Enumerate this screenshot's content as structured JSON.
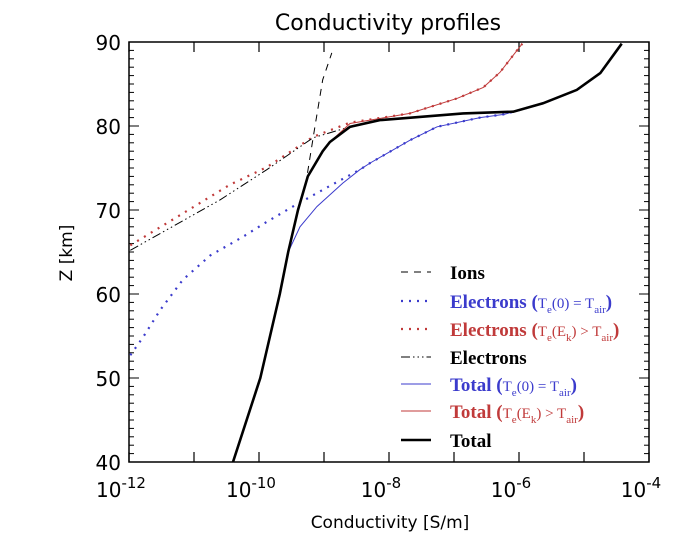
{
  "chart_data": {
    "type": "line",
    "title": "Conductivity profiles",
    "xlabel": "Conductivity [S/m]",
    "ylabel": "Z [km]",
    "xscale": "log",
    "xlim": [
      1e-12,
      0.0001
    ],
    "ylim": [
      40,
      90
    ],
    "x_tick_labels": [
      {
        "base": "10",
        "exp": "-12",
        "value": -12
      },
      {
        "base": "10",
        "exp": "-10",
        "value": -10
      },
      {
        "base": "10",
        "exp": "-8",
        "value": -8
      },
      {
        "base": "10",
        "exp": "-6",
        "value": -6
      },
      {
        "base": "10",
        "exp": "-4",
        "value": -4
      }
    ],
    "y_ticks": [
      40,
      50,
      60,
      70,
      80,
      90
    ],
    "grid": false,
    "legend_position": "bottom-right",
    "series": [
      {
        "name": "Ions",
        "color": "#000000",
        "style": "dashed",
        "log10_x": [
          -10.4,
          -9.98,
          -9.68,
          -9.55,
          -9.4,
          -9.29,
          -9.14,
          -9.02,
          -8.88
        ],
        "z": [
          40,
          50,
          60,
          65,
          70,
          72.7,
          79.9,
          85.5,
          88.7
        ]
      },
      {
        "name": "Electrons (Te(0) = Tair)",
        "color": "#3b3bcc",
        "style": "dotted",
        "log10_x": [
          -11.98,
          -11.78,
          -11.52,
          -11.17,
          -10.75,
          -10.25,
          -9.88,
          -9.48,
          -8.95,
          -8.45,
          -8.29,
          -7.68,
          -7.26,
          -6.6,
          -6.22,
          -5.63,
          -5.11,
          -4.75,
          -4.42
        ],
        "z": [
          52.7,
          54.9,
          58.1,
          61.7,
          64.6,
          66.8,
          68.6,
          70.4,
          72.7,
          74.8,
          75.6,
          78.3,
          79.9,
          81.0,
          81.4,
          82.7,
          84.3,
          86.3,
          89.8
        ]
      },
      {
        "name": "Electrons (Te(Ek) > Tair)",
        "color": "#c03a3a",
        "style": "dotted",
        "log10_x": [
          -11.98,
          -11.17,
          -10.45,
          -9.88,
          -9.17,
          -8.6,
          -7.68,
          -6.95,
          -6.55,
          -6.29,
          -6.11,
          -5.95
        ],
        "z": [
          65.8,
          69.6,
          73.0,
          75.1,
          78.7,
          80.4,
          81.5,
          83.3,
          84.6,
          86.4,
          88.2,
          89.8
        ]
      },
      {
        "name": "Electrons",
        "color": "#000000",
        "style": "dashdot",
        "log10_x": [
          -11.98,
          -10.6,
          -9.88,
          -9.17,
          -8.6,
          -8.14,
          -6.86,
          -6.09,
          -5.63,
          -5.11,
          -4.75,
          -4.42
        ],
        "z": [
          65.2,
          71.2,
          74.8,
          78.6,
          79.9,
          80.7,
          81.5,
          81.7,
          82.7,
          84.3,
          86.3,
          89.8
        ]
      },
      {
        "name": "Total (Te(0) = Tair)",
        "color": "#3b3bcc",
        "style": "solid",
        "log10_x": [
          -10.4,
          -9.98,
          -9.68,
          -9.55,
          -9.37,
          -9.11,
          -8.71,
          -8.45,
          -8.29,
          -7.68,
          -7.26,
          -6.6,
          -6.22,
          -5.63,
          -5.11,
          -4.75,
          -4.42
        ],
        "z": [
          40,
          50,
          60,
          65,
          68,
          70.4,
          73.2,
          74.8,
          75.6,
          78.3,
          79.9,
          81.0,
          81.4,
          82.7,
          84.3,
          86.3,
          89.8
        ]
      },
      {
        "name": "Total (Te(Ek) > Tair)",
        "color": "#c03a3a",
        "style": "solid",
        "log10_x": [
          -10.4,
          -9.98,
          -9.68,
          -9.55,
          -9.4,
          -9.25,
          -9.02,
          -8.91,
          -8.6,
          -7.68,
          -6.95,
          -6.55,
          -6.29,
          -6.11,
          -5.95
        ],
        "z": [
          40,
          50,
          60,
          65,
          70,
          74,
          77,
          78.1,
          80.3,
          81.5,
          83.3,
          84.6,
          86.4,
          88.2,
          89.8
        ]
      },
      {
        "name": "Total",
        "color": "#000000",
        "style": "solid-thick",
        "log10_x": [
          -10.4,
          -9.98,
          -9.68,
          -9.55,
          -9.4,
          -9.25,
          -9.02,
          -8.91,
          -8.6,
          -8.14,
          -6.86,
          -6.09,
          -5.63,
          -5.11,
          -4.75,
          -4.42
        ],
        "z": [
          40,
          50,
          60,
          65,
          70,
          74,
          77,
          78.1,
          79.9,
          80.7,
          81.5,
          81.7,
          82.7,
          84.3,
          86.3,
          89.8
        ]
      }
    ],
    "legend": [
      {
        "main": "Ions",
        "color": "#000000",
        "style": "dashed",
        "parts": []
      },
      {
        "main": "Electrons",
        "color": "#3b3bcc",
        "style": "dotted",
        "parts": [
          {
            "t": " ("
          },
          {
            "t": "T",
            "s": 1
          },
          {
            "t": "e",
            "sub": 1
          },
          {
            "t": "(0) = T",
            "s": 1
          },
          {
            "t": "air",
            "sub": 1
          },
          {
            "t": ")"
          }
        ]
      },
      {
        "main": "Electrons",
        "color": "#c03a3a",
        "style": "dotted",
        "parts": [
          {
            "t": " ("
          },
          {
            "t": "T",
            "s": 1
          },
          {
            "t": "e",
            "sub": 1
          },
          {
            "t": "(E",
            "s": 1
          },
          {
            "t": "k",
            "sub": 1
          },
          {
            "t": ") > T",
            "s": 1
          },
          {
            "t": "air",
            "sub": 1
          },
          {
            "t": ")"
          }
        ]
      },
      {
        "main": "Electrons",
        "color": "#000000",
        "style": "dashdot",
        "parts": []
      },
      {
        "main": "Total",
        "color": "#3b3bcc",
        "style": "solid",
        "parts": [
          {
            "t": " ("
          },
          {
            "t": "T",
            "s": 1
          },
          {
            "t": "e",
            "sub": 1
          },
          {
            "t": "(0) = T",
            "s": 1
          },
          {
            "t": "air",
            "sub": 1
          },
          {
            "t": ")"
          }
        ]
      },
      {
        "main": "Total",
        "color": "#c03a3a",
        "style": "solid",
        "parts": [
          {
            "t": " ("
          },
          {
            "t": "T",
            "s": 1
          },
          {
            "t": "e",
            "sub": 1
          },
          {
            "t": "(E",
            "s": 1
          },
          {
            "t": "k",
            "sub": 1
          },
          {
            "t": ") > T",
            "s": 1
          },
          {
            "t": "air",
            "sub": 1
          },
          {
            "t": ")"
          }
        ]
      },
      {
        "main": "Total",
        "color": "#000000",
        "style": "solid-thick",
        "parts": []
      }
    ]
  }
}
